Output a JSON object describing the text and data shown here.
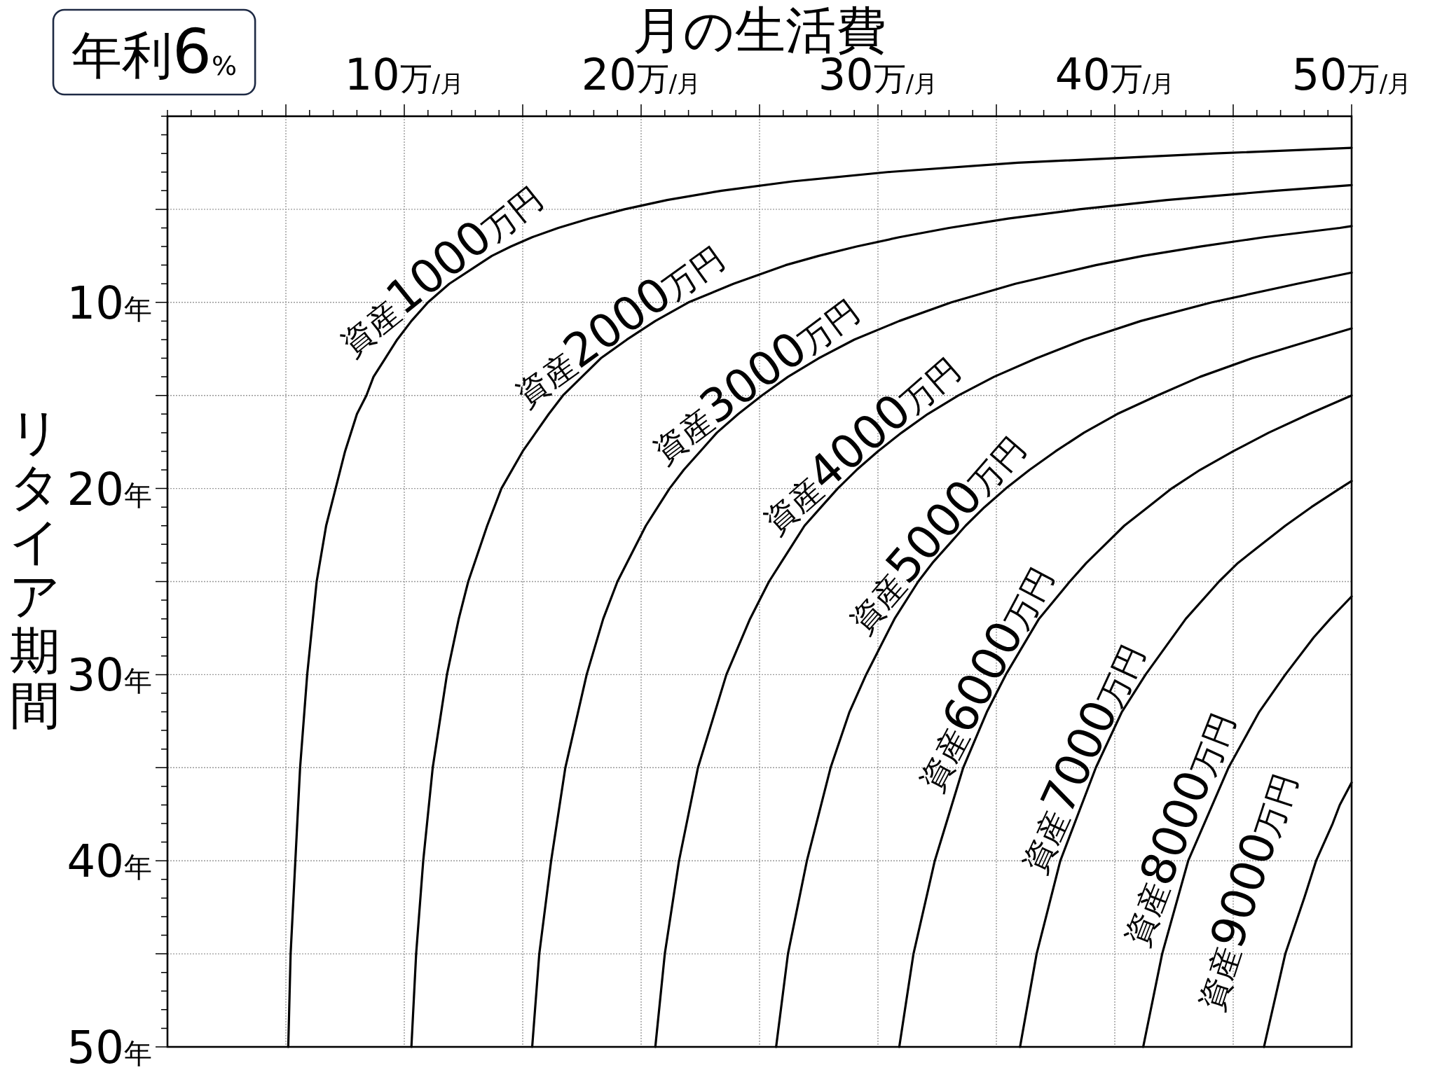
{
  "chart_data": {
    "type": "line",
    "title": "年利6$_{%}$",
    "xlabel": "月の生活費",
    "ylabel": "リタイア期間",
    "xlim": [
      0,
      50
    ],
    "ylim": [
      50,
      0
    ],
    "xticks": [
      {
        "value": 5,
        "label": null
      },
      {
        "value": 10,
        "label": "10万$_{/月}$"
      },
      {
        "value": 15,
        "label": null
      },
      {
        "value": 20,
        "label": "20万$_{/月}$"
      },
      {
        "value": 25,
        "label": null
      },
      {
        "value": 30,
        "label": "30万$_{/月}$"
      },
      {
        "value": 35,
        "label": null
      },
      {
        "value": 40,
        "label": "40万$_{/月}$"
      },
      {
        "value": 45,
        "label": null
      },
      {
        "value": 50,
        "label": "50万$_{/月}$"
      }
    ],
    "yticks": [
      {
        "value": 5,
        "label": null
      },
      {
        "value": 10,
        "label": "10年"
      },
      {
        "value": 15,
        "label": null
      },
      {
        "value": 20,
        "label": "20年"
      },
      {
        "value": 25,
        "label": null
      },
      {
        "value": 30,
        "label": "30年"
      },
      {
        "value": 35,
        "label": null
      },
      {
        "value": 40,
        "label": "40年"
      },
      {
        "value": 45,
        "label": null
      },
      {
        "value": 50,
        "label": "50年"
      }
    ],
    "grid": true,
    "legend": false,
    "marker": "none",
    "line_style": "solid",
    "series": [
      {
        "name": "資産1000万円",
        "color": "#000000",
        "x": [
          5.1,
          5.2,
          5.4,
          5.6,
          5.9,
          6.3,
          6.7,
          7.1,
          7.5,
          8.0,
          8.4,
          8.7,
          9.2,
          9.7,
          10.3,
          11.0,
          11.9,
          13.1,
          13.7,
          14.5,
          15.4,
          16.5,
          17.8,
          19.3,
          21.1,
          23.4,
          26.4,
          30.4,
          35.9,
          44.2,
          50
        ],
        "values": [
          50,
          45,
          40,
          35,
          30,
          25,
          22,
          20,
          18,
          16,
          15,
          14,
          13,
          12,
          11,
          10,
          9,
          8,
          7.5,
          7,
          6.5,
          6,
          5.5,
          5,
          4.5,
          4,
          3.5,
          3,
          2.5,
          2,
          1.7
        ]
      },
      {
        "name": "資産2000万円",
        "color": "#000000",
        "x": [
          10.3,
          10.5,
          10.8,
          11.2,
          11.8,
          12.3,
          12.7,
          13.5,
          14.1,
          15.0,
          16.1,
          16.7,
          17.5,
          18.3,
          19.4,
          20.6,
          22.0,
          23.9,
          26.1,
          27.5,
          29.1,
          30.9,
          33.0,
          35.5,
          38.5,
          42.2,
          46.8,
          50
        ],
        "values": [
          50,
          45,
          40,
          35,
          30,
          27,
          25,
          22,
          20,
          18,
          16,
          15,
          14,
          13,
          12,
          11,
          10,
          9,
          8,
          7.5,
          7,
          6.5,
          6,
          5.5,
          5,
          4.5,
          4,
          3.7
        ]
      },
      {
        "name": "資産3000万円",
        "color": "#000000",
        "x": [
          15.4,
          15.7,
          16.2,
          16.8,
          17.7,
          18.4,
          19.0,
          19.8,
          20.2,
          20.7,
          21.2,
          21.8,
          22.5,
          23.2,
          24.1,
          25.1,
          26.2,
          27.5,
          29.0,
          30.9,
          33.1,
          35.8,
          39.2,
          41.2,
          43.6,
          46.3,
          49.5,
          50
        ],
        "values": [
          50,
          45,
          40,
          35,
          30,
          27,
          25,
          23,
          22,
          21,
          20,
          19,
          18,
          17,
          16,
          15,
          14,
          13,
          12,
          11,
          10,
          9,
          8,
          7.5,
          7,
          6.5,
          6,
          5.9
        ]
      },
      {
        "name": "資産4000万円",
        "color": "#000000",
        "x": [
          20.6,
          21.0,
          21.6,
          22.4,
          23.6,
          24.6,
          25.4,
          25.9,
          26.4,
          26.9,
          27.6,
          28.3,
          29.1,
          30.0,
          31.0,
          32.1,
          33.4,
          34.9,
          36.7,
          38.7,
          41.1,
          44.1,
          47.7,
          50
        ],
        "values": [
          50,
          45,
          40,
          35,
          30,
          27,
          25,
          24,
          23,
          22,
          21,
          20,
          19,
          18,
          17,
          16,
          15,
          14,
          13,
          12,
          11,
          10,
          9,
          8.4
        ]
      },
      {
        "name": "資産5000万円",
        "color": "#000000",
        "x": [
          25.7,
          26.2,
          27.0,
          28.0,
          28.8,
          29.5,
          30.7,
          31.7,
          32.3,
          33.0,
          33.7,
          34.5,
          35.4,
          36.4,
          37.5,
          38.7,
          40.1,
          41.8,
          43.6,
          45.8,
          48.4,
          50
        ],
        "values": [
          50,
          45,
          40,
          35,
          32,
          30,
          27,
          25,
          24,
          23,
          22,
          21,
          20,
          19,
          18,
          17,
          16,
          15,
          14,
          13,
          12,
          11.4
        ]
      },
      {
        "name": "資産6000万円",
        "color": "#000000",
        "x": [
          30.9,
          31.5,
          32.4,
          33.6,
          34.6,
          35.4,
          36.8,
          38.1,
          38.8,
          39.6,
          40.4,
          41.4,
          42.4,
          43.6,
          45.0,
          46.5,
          48.2,
          50
        ],
        "values": [
          50,
          45,
          40,
          35,
          32,
          30,
          27,
          25,
          24,
          23,
          22,
          21,
          20,
          19,
          18,
          17,
          16,
          15.0
        ]
      },
      {
        "name": "資産7000万円",
        "color": "#000000",
        "x": [
          36.0,
          36.7,
          37.7,
          39.2,
          40.3,
          41.3,
          43.0,
          44.4,
          45.2,
          46.2,
          47.2,
          48.3,
          49.5,
          50
        ],
        "values": [
          50,
          45,
          40,
          35,
          32,
          30,
          27,
          25,
          24,
          23,
          22,
          21,
          20,
          19.6
        ]
      },
      {
        "name": "資産8000万円",
        "color": "#000000",
        "x": [
          41.2,
          42.0,
          43.1,
          44.8,
          46.1,
          47.2,
          48.4,
          49.1,
          50
        ],
        "values": [
          50,
          45,
          40,
          35,
          32,
          30,
          28,
          27,
          25.8
        ]
      },
      {
        "name": "資産9000万円",
        "color": "#000000",
        "x": [
          46.3,
          47.2,
          48.0,
          48.5,
          49.2,
          49.5,
          50
        ],
        "values": [
          50,
          45,
          42,
          40,
          38,
          37,
          35.8
        ]
      }
    ]
  }
}
